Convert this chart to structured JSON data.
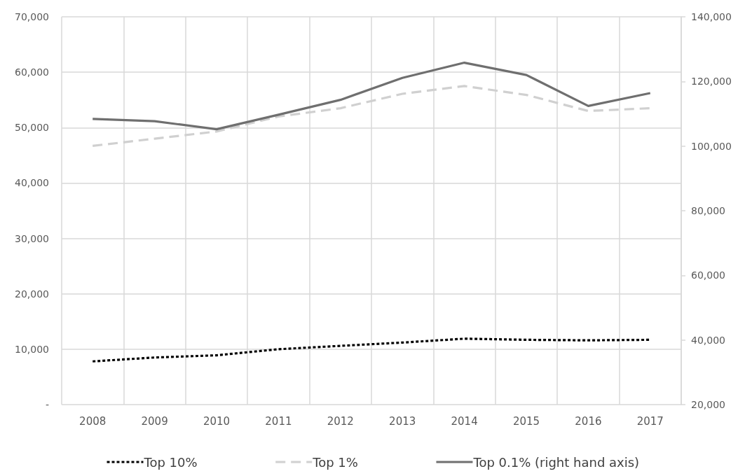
{
  "chart_data": {
    "type": "line",
    "categories": [
      "2008",
      "2009",
      "2010",
      "2011",
      "2012",
      "2013",
      "2014",
      "2015",
      "2016",
      "2017"
    ],
    "series": [
      {
        "name": "Top 10%",
        "color": "#000000",
        "line_style": "dotted",
        "values": [
          7800,
          8500,
          8900,
          10000,
          10600,
          11200,
          11900,
          11700,
          11600,
          11700
        ]
      },
      {
        "name": "Top 1%",
        "color": "#d0d0d0",
        "line_style": "dashed",
        "values": [
          46700,
          48000,
          49300,
          52000,
          53500,
          56100,
          57500,
          55900,
          53000,
          53500
        ]
      },
      {
        "name": "Top 0.1% (right hand axis)",
        "color": "#6f6f6f",
        "line_style": "solid",
        "axis": "y2",
        "values": [
          108400,
          107700,
          105200,
          109700,
          114300,
          121100,
          125800,
          122000,
          112400,
          116400
        ]
      }
    ],
    "ylim": [
      0,
      70000
    ],
    "yticks": [
      {
        "value": 0,
        "label": "-"
      },
      {
        "value": 10000,
        "label": "10,000"
      },
      {
        "value": 20000,
        "label": "20,000"
      },
      {
        "value": 30000,
        "label": "30,000"
      },
      {
        "value": 40000,
        "label": "40,000"
      },
      {
        "value": 50000,
        "label": "50,000"
      },
      {
        "value": 60000,
        "label": "60,000"
      },
      {
        "value": 70000,
        "label": "70,000"
      }
    ],
    "y2lim": [
      20000,
      140000
    ],
    "y2ticks": [
      {
        "value": 20000,
        "label": "20,000"
      },
      {
        "value": 40000,
        "label": "40,000"
      },
      {
        "value": 60000,
        "label": "60,000"
      },
      {
        "value": 80000,
        "label": "80,000"
      },
      {
        "value": 100000,
        "label": "100,000"
      },
      {
        "value": 120000,
        "label": "120,000"
      },
      {
        "value": 140000,
        "label": "140,000"
      }
    ],
    "grid": true,
    "legend": "bottom",
    "marker": "none"
  }
}
